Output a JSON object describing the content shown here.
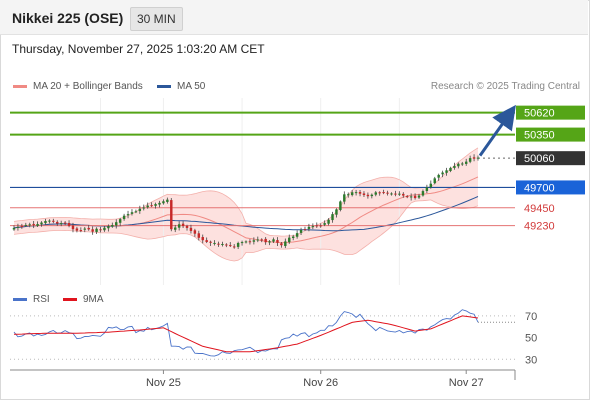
{
  "header": {
    "title": "Nikkei 225 (OSE)",
    "timeframe": "30 MIN"
  },
  "timestamp": "Thursday, November 27, 2025 1:03:20 AM CET",
  "legend": {
    "ma20_label": "MA 20 + Bollinger Bands",
    "ma20_color": "#f08a84",
    "ma50_label": "MA 50",
    "ma50_color": "#2b579a",
    "credit": "Research © 2025 Trading Central"
  },
  "rsi_legend": {
    "rsi_label": "RSI",
    "rsi_color": "#4a73c9",
    "ma_label": "9MA",
    "ma_color": "#e0141e"
  },
  "chart_data": [
    {
      "type": "candlestick",
      "title": "Nikkei 225 (OSE)",
      "y_axis_side": "right",
      "x_tick_labels": [
        "Nov 25",
        "Nov 26",
        "Nov 27"
      ],
      "ylim": [
        48500,
        50800
      ],
      "close_path": [
        [
          0,
          49180
        ],
        [
          4,
          49240
        ],
        [
          8,
          49310
        ],
        [
          12,
          49260
        ],
        [
          16,
          49160
        ],
        [
          20,
          49180
        ],
        [
          24,
          49230
        ],
        [
          28,
          49330
        ],
        [
          32,
          49430
        ],
        [
          36,
          49510
        ],
        [
          39,
          49560
        ],
        [
          40,
          49190
        ],
        [
          42,
          49230
        ],
        [
          45,
          49160
        ],
        [
          48,
          49040
        ],
        [
          52,
          49010
        ],
        [
          56,
          48990
        ],
        [
          60,
          49020
        ],
        [
          64,
          49050
        ],
        [
          66,
          49070
        ],
        [
          68,
          48990
        ],
        [
          70,
          49090
        ],
        [
          74,
          49180
        ],
        [
          78,
          49230
        ],
        [
          80,
          49310
        ],
        [
          82,
          49450
        ],
        [
          84,
          49630
        ],
        [
          86,
          49640
        ],
        [
          90,
          49590
        ],
        [
          94,
          49650
        ],
        [
          98,
          49630
        ],
        [
          102,
          49560
        ],
        [
          104,
          49640
        ],
        [
          106,
          49740
        ],
        [
          108,
          49850
        ],
        [
          110,
          49920
        ],
        [
          112,
          49980
        ],
        [
          114,
          50010
        ],
        [
          116,
          50040
        ],
        [
          118,
          50060
        ]
      ],
      "levels": [
        {
          "value": 50620,
          "label": "50620",
          "type": "resistance"
        },
        {
          "value": 50350,
          "label": "50350",
          "type": "resistance"
        },
        {
          "value": 50060,
          "label": "50060",
          "type": "last"
        },
        {
          "value": 49700,
          "label": "49700",
          "type": "pivot"
        },
        {
          "value": 49450,
          "label": "49450",
          "type": "support"
        },
        {
          "value": 49230,
          "label": "49230",
          "type": "support"
        }
      ],
      "series": [
        {
          "name": "MA 20 + Bollinger Bands",
          "color": "#f08a84"
        },
        {
          "name": "MA 50",
          "color": "#2b579a"
        }
      ],
      "annotation": "up arrow toward 50620"
    },
    {
      "type": "line",
      "ylim": [
        22,
        80
      ],
      "tick_labels": [
        "70",
        "50",
        "30"
      ],
      "tick_values": [
        70,
        50,
        30
      ],
      "rsi_path": [
        [
          0,
          54
        ],
        [
          8,
          55
        ],
        [
          16,
          52
        ],
        [
          24,
          56
        ],
        [
          32,
          58
        ],
        [
          36,
          62
        ],
        [
          39,
          60
        ],
        [
          40,
          40
        ],
        [
          44,
          38
        ],
        [
          48,
          36
        ],
        [
          54,
          34
        ],
        [
          60,
          38
        ],
        [
          66,
          42
        ],
        [
          70,
          48
        ],
        [
          76,
          56
        ],
        [
          80,
          62
        ],
        [
          84,
          70
        ],
        [
          88,
          68
        ],
        [
          92,
          60
        ],
        [
          96,
          58
        ],
        [
          100,
          52
        ],
        [
          104,
          56
        ],
        [
          108,
          66
        ],
        [
          112,
          72
        ],
        [
          116,
          72
        ],
        [
          118,
          64
        ]
      ],
      "ma_path": [
        [
          0,
          53
        ],
        [
          8,
          54
        ],
        [
          16,
          54
        ],
        [
          24,
          55
        ],
        [
          32,
          57
        ],
        [
          38,
          59
        ],
        [
          42,
          52
        ],
        [
          48,
          42
        ],
        [
          54,
          37
        ],
        [
          60,
          37
        ],
        [
          66,
          40
        ],
        [
          72,
          44
        ],
        [
          78,
          52
        ],
        [
          82,
          58
        ],
        [
          86,
          64
        ],
        [
          90,
          66
        ],
        [
          96,
          62
        ],
        [
          102,
          56
        ],
        [
          106,
          58
        ],
        [
          110,
          64
        ],
        [
          114,
          70
        ],
        [
          118,
          68
        ]
      ],
      "series": [
        {
          "name": "RSI",
          "color": "#4a73c9"
        },
        {
          "name": "9MA",
          "color": "#e0141e"
        }
      ]
    }
  ]
}
